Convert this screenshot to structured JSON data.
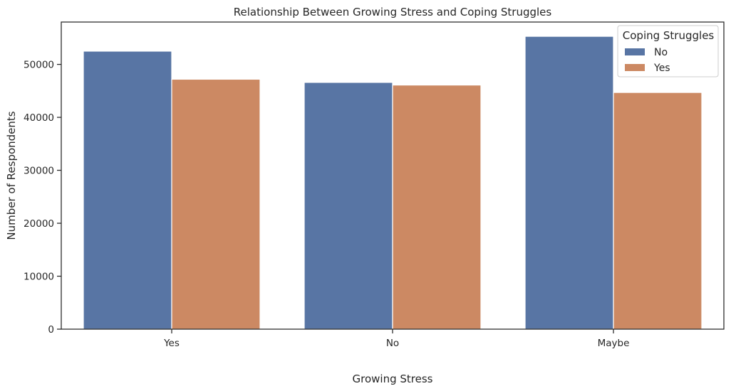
{
  "chart_data": {
    "type": "bar",
    "title": "Relationship Between Growing Stress and Coping Struggles",
    "xlabel": "Growing Stress",
    "ylabel": "Number of Respondents",
    "categories": [
      "Yes",
      "No",
      "Maybe"
    ],
    "series": [
      {
        "name": "No",
        "color": "#5875a4",
        "values": [
          52500,
          46600,
          55300
        ]
      },
      {
        "name": "Yes",
        "color": "#cc8963",
        "values": [
          47200,
          46100,
          44700
        ]
      }
    ],
    "ylim": [
      0,
      58000
    ],
    "yticks": [
      0,
      10000,
      20000,
      30000,
      40000,
      50000
    ],
    "grid": false,
    "legend": {
      "title": "Coping Struggles",
      "placement": "top-right"
    }
  }
}
